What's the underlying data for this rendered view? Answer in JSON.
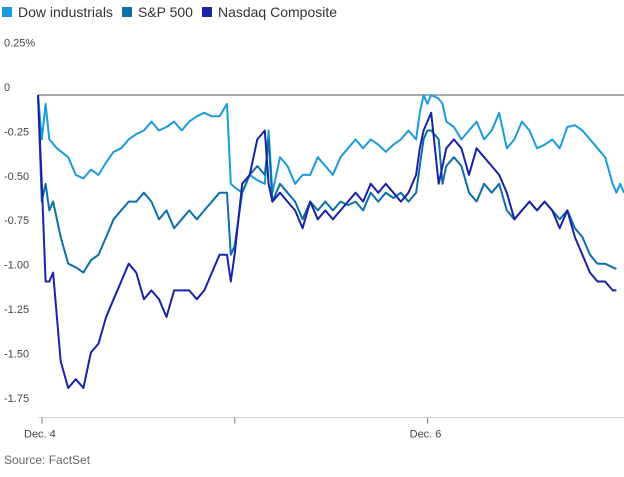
{
  "chart_data": {
    "type": "line",
    "title": "",
    "xlabel": "",
    "ylabel": "",
    "ylim": [
      -1.8,
      0.35
    ],
    "x_ticks": [
      {
        "label": "Dec. 4",
        "index": 0
      },
      {
        "label": "",
        "index": 51
      },
      {
        "label": "Dec. 6",
        "index": 102
      }
    ],
    "x_count": 153,
    "y_ticks": [
      {
        "value": 0.25,
        "label": "0.25%"
      },
      {
        "value": 0,
        "label": "0"
      },
      {
        "value": -0.25,
        "label": "-0.25"
      },
      {
        "value": -0.5,
        "label": "-0.50"
      },
      {
        "value": -0.75,
        "label": "-0.75"
      },
      {
        "value": -1.0,
        "label": "-1.00"
      },
      {
        "value": -1.25,
        "label": "-1.25"
      },
      {
        "value": -1.5,
        "label": "-1.50"
      },
      {
        "value": -1.75,
        "label": "-1.75"
      }
    ],
    "series": [
      {
        "name": "Dow industrials",
        "color": "#1a9bdb",
        "points": [
          [
            0,
            0
          ],
          [
            1,
            -0.25
          ],
          [
            2,
            -0.05
          ],
          [
            3,
            -0.25
          ],
          [
            5,
            -0.3
          ],
          [
            8,
            -0.35
          ],
          [
            10,
            -0.45
          ],
          [
            12,
            -0.47
          ],
          [
            14,
            -0.42
          ],
          [
            16,
            -0.45
          ],
          [
            18,
            -0.38
          ],
          [
            20,
            -0.32
          ],
          [
            22,
            -0.3
          ],
          [
            24,
            -0.25
          ],
          [
            26,
            -0.22
          ],
          [
            28,
            -0.2
          ],
          [
            30,
            -0.15
          ],
          [
            32,
            -0.2
          ],
          [
            34,
            -0.18
          ],
          [
            36,
            -0.15
          ],
          [
            38,
            -0.2
          ],
          [
            40,
            -0.15
          ],
          [
            42,
            -0.12
          ],
          [
            44,
            -0.1
          ],
          [
            46,
            -0.12
          ],
          [
            48,
            -0.12
          ],
          [
            50,
            -0.05
          ],
          [
            51,
            -0.5
          ],
          [
            52,
            -0.52
          ],
          [
            54,
            -0.55
          ],
          [
            56,
            -0.45
          ],
          [
            58,
            -0.48
          ],
          [
            60,
            -0.5
          ],
          [
            61,
            -0.2
          ],
          [
            62,
            -0.55
          ],
          [
            64,
            -0.35
          ],
          [
            66,
            -0.4
          ],
          [
            68,
            -0.5
          ],
          [
            70,
            -0.45
          ],
          [
            72,
            -0.45
          ],
          [
            74,
            -0.35
          ],
          [
            76,
            -0.4
          ],
          [
            78,
            -0.45
          ],
          [
            80,
            -0.35
          ],
          [
            82,
            -0.3
          ],
          [
            84,
            -0.25
          ],
          [
            86,
            -0.3
          ],
          [
            88,
            -0.25
          ],
          [
            90,
            -0.28
          ],
          [
            92,
            -0.32
          ],
          [
            94,
            -0.28
          ],
          [
            96,
            -0.25
          ],
          [
            98,
            -0.2
          ],
          [
            100,
            -0.25
          ],
          [
            101,
            -0.1
          ],
          [
            102,
            0
          ],
          [
            103,
            -0.05
          ],
          [
            104,
            0
          ],
          [
            106,
            -0.02
          ],
          [
            107,
            -0.05
          ],
          [
            108,
            -0.15
          ],
          [
            110,
            -0.18
          ],
          [
            112,
            -0.25
          ],
          [
            114,
            -0.2
          ],
          [
            116,
            -0.15
          ],
          [
            118,
            -0.25
          ],
          [
            120,
            -0.2
          ],
          [
            122,
            -0.1
          ],
          [
            124,
            -0.3
          ],
          [
            126,
            -0.25
          ],
          [
            128,
            -0.15
          ],
          [
            130,
            -0.2
          ],
          [
            132,
            -0.3
          ],
          [
            134,
            -0.28
          ],
          [
            136,
            -0.25
          ],
          [
            138,
            -0.3
          ],
          [
            140,
            -0.18
          ],
          [
            142,
            -0.17
          ],
          [
            144,
            -0.2
          ],
          [
            146,
            -0.25
          ],
          [
            148,
            -0.3
          ],
          [
            150,
            -0.35
          ],
          [
            152,
            -0.5
          ],
          [
            153,
            -0.55
          ],
          [
            154,
            -0.5
          ],
          [
            155,
            -0.55
          ]
        ]
      },
      {
        "name": "S&P 500",
        "color": "#0d6fa8",
        "points": [
          [
            0,
            0
          ],
          [
            1,
            -0.6
          ],
          [
            2,
            -0.5
          ],
          [
            3,
            -0.65
          ],
          [
            4,
            -0.6
          ],
          [
            6,
            -0.8
          ],
          [
            8,
            -0.95
          ],
          [
            10,
            -0.97
          ],
          [
            12,
            -1.0
          ],
          [
            14,
            -0.93
          ],
          [
            16,
            -0.9
          ],
          [
            18,
            -0.8
          ],
          [
            20,
            -0.7
          ],
          [
            22,
            -0.65
          ],
          [
            24,
            -0.6
          ],
          [
            26,
            -0.6
          ],
          [
            28,
            -0.55
          ],
          [
            30,
            -0.6
          ],
          [
            32,
            -0.7
          ],
          [
            34,
            -0.65
          ],
          [
            36,
            -0.75
          ],
          [
            38,
            -0.7
          ],
          [
            40,
            -0.65
          ],
          [
            42,
            -0.7
          ],
          [
            44,
            -0.65
          ],
          [
            46,
            -0.6
          ],
          [
            48,
            -0.55
          ],
          [
            50,
            -0.55
          ],
          [
            51,
            -0.9
          ],
          [
            52,
            -0.85
          ],
          [
            54,
            -0.55
          ],
          [
            56,
            -0.45
          ],
          [
            58,
            -0.4
          ],
          [
            60,
            -0.45
          ],
          [
            61,
            -0.25
          ],
          [
            62,
            -0.6
          ],
          [
            64,
            -0.5
          ],
          [
            66,
            -0.55
          ],
          [
            68,
            -0.6
          ],
          [
            70,
            -0.7
          ],
          [
            72,
            -0.6
          ],
          [
            74,
            -0.65
          ],
          [
            76,
            -0.6
          ],
          [
            78,
            -0.65
          ],
          [
            80,
            -0.6
          ],
          [
            82,
            -0.62
          ],
          [
            84,
            -0.6
          ],
          [
            86,
            -0.65
          ],
          [
            88,
            -0.55
          ],
          [
            90,
            -0.6
          ],
          [
            92,
            -0.55
          ],
          [
            94,
            -0.58
          ],
          [
            96,
            -0.55
          ],
          [
            98,
            -0.6
          ],
          [
            100,
            -0.55
          ],
          [
            101,
            -0.4
          ],
          [
            102,
            -0.25
          ],
          [
            103,
            -0.2
          ],
          [
            104,
            -0.2
          ],
          [
            106,
            -0.25
          ],
          [
            107,
            -0.5
          ],
          [
            108,
            -0.4
          ],
          [
            110,
            -0.35
          ],
          [
            112,
            -0.4
          ],
          [
            114,
            -0.55
          ],
          [
            116,
            -0.6
          ],
          [
            118,
            -0.5
          ],
          [
            120,
            -0.55
          ],
          [
            122,
            -0.5
          ],
          [
            124,
            -0.65
          ],
          [
            126,
            -0.7
          ],
          [
            128,
            -0.65
          ],
          [
            130,
            -0.6
          ],
          [
            132,
            -0.65
          ],
          [
            134,
            -0.6
          ],
          [
            136,
            -0.65
          ],
          [
            138,
            -0.7
          ],
          [
            140,
            -0.65
          ],
          [
            142,
            -0.75
          ],
          [
            144,
            -0.8
          ],
          [
            146,
            -0.9
          ],
          [
            148,
            -0.95
          ],
          [
            150,
            -0.95
          ],
          [
            152,
            -0.97
          ],
          [
            153,
            -0.98
          ]
        ]
      },
      {
        "name": "Nasdaq Composite",
        "color": "#1a22a6",
        "points": [
          [
            0,
            0
          ],
          [
            1,
            -0.5
          ],
          [
            2,
            -1.05
          ],
          [
            3,
            -1.05
          ],
          [
            4,
            -1.0
          ],
          [
            6,
            -1.5
          ],
          [
            8,
            -1.65
          ],
          [
            10,
            -1.6
          ],
          [
            12,
            -1.65
          ],
          [
            14,
            -1.45
          ],
          [
            16,
            -1.4
          ],
          [
            18,
            -1.25
          ],
          [
            20,
            -1.15
          ],
          [
            22,
            -1.05
          ],
          [
            24,
            -0.95
          ],
          [
            26,
            -1.0
          ],
          [
            28,
            -1.15
          ],
          [
            30,
            -1.1
          ],
          [
            32,
            -1.15
          ],
          [
            34,
            -1.25
          ],
          [
            36,
            -1.1
          ],
          [
            38,
            -1.1
          ],
          [
            40,
            -1.1
          ],
          [
            42,
            -1.15
          ],
          [
            44,
            -1.1
          ],
          [
            46,
            -1.0
          ],
          [
            48,
            -0.9
          ],
          [
            50,
            -0.9
          ],
          [
            51,
            -1.05
          ],
          [
            52,
            -0.9
          ],
          [
            54,
            -0.5
          ],
          [
            56,
            -0.45
          ],
          [
            58,
            -0.25
          ],
          [
            60,
            -0.2
          ],
          [
            61,
            -0.5
          ],
          [
            62,
            -0.6
          ],
          [
            64,
            -0.55
          ],
          [
            66,
            -0.6
          ],
          [
            68,
            -0.65
          ],
          [
            70,
            -0.75
          ],
          [
            72,
            -0.6
          ],
          [
            74,
            -0.7
          ],
          [
            76,
            -0.65
          ],
          [
            78,
            -0.7
          ],
          [
            80,
            -0.65
          ],
          [
            82,
            -0.6
          ],
          [
            84,
            -0.55
          ],
          [
            86,
            -0.6
          ],
          [
            88,
            -0.5
          ],
          [
            90,
            -0.55
          ],
          [
            92,
            -0.5
          ],
          [
            94,
            -0.55
          ],
          [
            96,
            -0.6
          ],
          [
            98,
            -0.55
          ],
          [
            100,
            -0.45
          ],
          [
            101,
            -0.3
          ],
          [
            102,
            -0.2
          ],
          [
            103,
            -0.15
          ],
          [
            104,
            -0.1
          ],
          [
            106,
            -0.5
          ],
          [
            108,
            -0.3
          ],
          [
            110,
            -0.25
          ],
          [
            112,
            -0.3
          ],
          [
            114,
            -0.45
          ],
          [
            116,
            -0.3
          ],
          [
            118,
            -0.35
          ],
          [
            120,
            -0.4
          ],
          [
            122,
            -0.45
          ],
          [
            124,
            -0.55
          ],
          [
            126,
            -0.7
          ],
          [
            128,
            -0.65
          ],
          [
            130,
            -0.6
          ],
          [
            132,
            -0.65
          ],
          [
            134,
            -0.6
          ],
          [
            136,
            -0.65
          ],
          [
            138,
            -0.75
          ],
          [
            140,
            -0.65
          ],
          [
            142,
            -0.8
          ],
          [
            144,
            -0.9
          ],
          [
            146,
            -1.0
          ],
          [
            148,
            -1.05
          ],
          [
            150,
            -1.05
          ],
          [
            152,
            -1.1
          ],
          [
            153,
            -1.1
          ]
        ]
      }
    ]
  },
  "source": "Source: FactSet"
}
